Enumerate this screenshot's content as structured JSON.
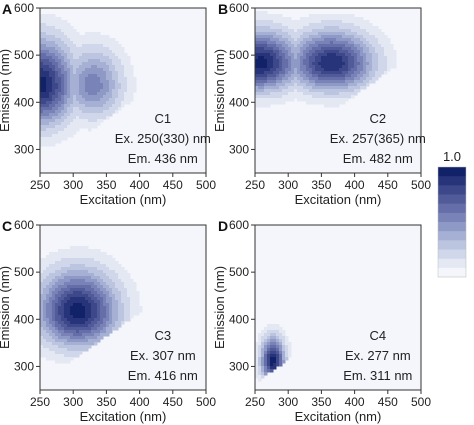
{
  "chart_data": [
    {
      "type": "heatmap",
      "panel_label": "A",
      "component": "C1",
      "annotation_ex": "Ex. 250(330) nm",
      "annotation_em": "Em. 436 nm",
      "xlabel": "Excitation (nm)",
      "ylabel": "Emission (nm)",
      "xlim": [
        250,
        500
      ],
      "ylim": [
        250,
        600
      ],
      "xticks": [
        250,
        300,
        350,
        400,
        450,
        500
      ],
      "yticks": [
        300,
        400,
        500,
        600
      ],
      "peaks": [
        {
          "ex": 250,
          "em": 436,
          "intensity": 1.0
        },
        {
          "ex": 330,
          "em": 436,
          "intensity": 0.55
        }
      ]
    },
    {
      "type": "heatmap",
      "panel_label": "B",
      "component": "C2",
      "annotation_ex": "Ex. 257(365) nm",
      "annotation_em": "Em. 482 nm",
      "xlabel": "Excitation (nm)",
      "ylabel": "Emission (nm)",
      "xlim": [
        250,
        500
      ],
      "ylim": [
        250,
        600
      ],
      "xticks": [
        250,
        300,
        350,
        400,
        450,
        500
      ],
      "yticks": [
        300,
        400,
        500,
        600
      ],
      "peaks": [
        {
          "ex": 257,
          "em": 482,
          "intensity": 1.0
        },
        {
          "ex": 365,
          "em": 482,
          "intensity": 0.95
        }
      ]
    },
    {
      "type": "heatmap",
      "panel_label": "C",
      "component": "C3",
      "annotation_ex": "Ex. 307 nm",
      "annotation_em": "Em. 416 nm",
      "xlabel": "Excitation (nm)",
      "ylabel": "Emission (nm)",
      "xlim": [
        250,
        500
      ],
      "ylim": [
        250,
        600
      ],
      "xticks": [
        250,
        300,
        350,
        400,
        450,
        500
      ],
      "yticks": [
        300,
        400,
        500,
        600
      ],
      "peaks": [
        {
          "ex": 307,
          "em": 416,
          "intensity": 1.0
        }
      ]
    },
    {
      "type": "heatmap",
      "panel_label": "D",
      "component": "C4",
      "annotation_ex": "Ex. 277 nm",
      "annotation_em": "Em. 311 nm",
      "xlabel": "Excitation (nm)",
      "ylabel": "Emission (nm)",
      "xlim": [
        250,
        500
      ],
      "ylim": [
        250,
        600
      ],
      "xticks": [
        250,
        300,
        350,
        400,
        450,
        500
      ],
      "yticks": [
        300,
        400,
        500,
        600
      ],
      "peaks": [
        {
          "ex": 277,
          "em": 311,
          "intensity": 1.0
        }
      ]
    }
  ],
  "colorbar": {
    "max_label": "1.0",
    "colors": [
      "#f4f6fb",
      "#e3e8f3",
      "#d0d7ea",
      "#bcc5e0",
      "#a6b0d4",
      "#8f99c6",
      "#7a83b7",
      "#656ea8",
      "#515b99",
      "#3d488a",
      "#28347a",
      "#122268"
    ]
  }
}
